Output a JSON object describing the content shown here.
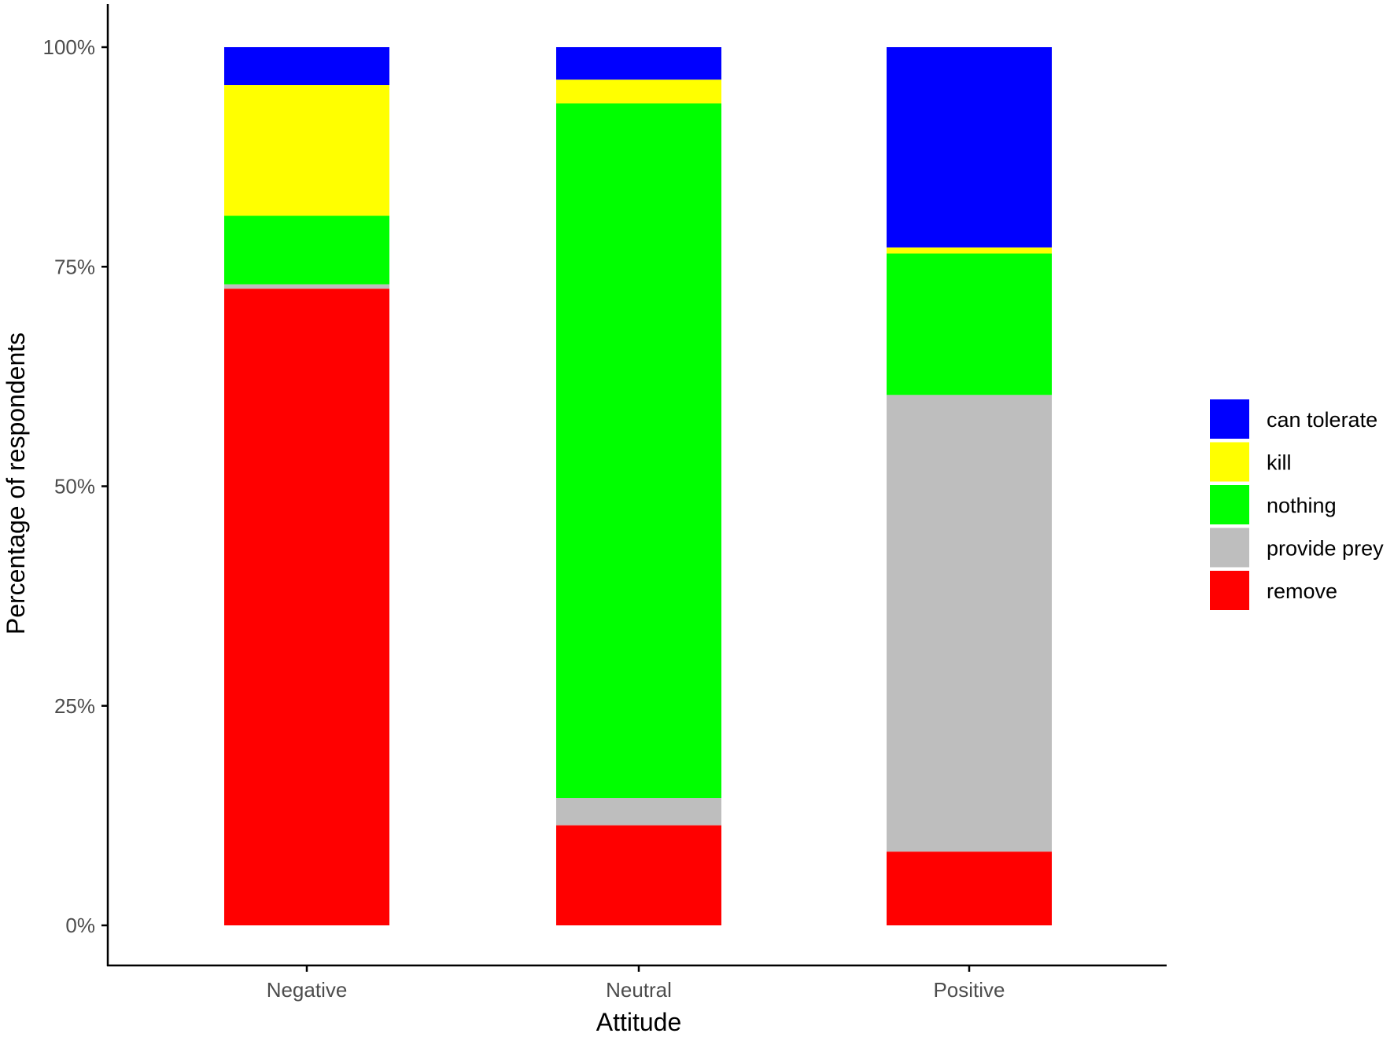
{
  "chart_data": {
    "type": "bar",
    "stacked": true,
    "title": "",
    "xlabel": "Attitude",
    "ylabel": "Percentage of respondents",
    "ylim": [
      0,
      100
    ],
    "y_ticks": [
      "0%",
      "25%",
      "50%",
      "75%",
      "100%"
    ],
    "y_tick_values": [
      0,
      25,
      50,
      75,
      100
    ],
    "grid": false,
    "legend_position": "right",
    "categories": [
      "Negative",
      "Neutral",
      "Positive"
    ],
    "stack_order_bottom_to_top": [
      "remove",
      "provide prey",
      "nothing",
      "kill",
      "can tolerate"
    ],
    "series": [
      {
        "name": "can tolerate",
        "color": "#0000ff",
        "values": [
          4.3,
          3.7,
          22.8
        ]
      },
      {
        "name": "kill",
        "color": "#ffff00",
        "values": [
          14.9,
          2.7,
          0.7
        ]
      },
      {
        "name": "nothing",
        "color": "#00ff00",
        "values": [
          7.8,
          79.1,
          16.1
        ]
      },
      {
        "name": "provide prey",
        "color": "#bebebe",
        "values": [
          0.5,
          3.1,
          52.0
        ]
      },
      {
        "name": "remove",
        "color": "#ff0000",
        "values": [
          72.5,
          11.4,
          8.4
        ]
      }
    ]
  },
  "legend": {
    "items": [
      {
        "label": "can tolerate",
        "color": "#0000ff"
      },
      {
        "label": "kill",
        "color": "#ffff00"
      },
      {
        "label": "nothing",
        "color": "#00ff00"
      },
      {
        "label": "provide prey",
        "color": "#bebebe"
      },
      {
        "label": "remove",
        "color": "#ff0000"
      }
    ]
  }
}
